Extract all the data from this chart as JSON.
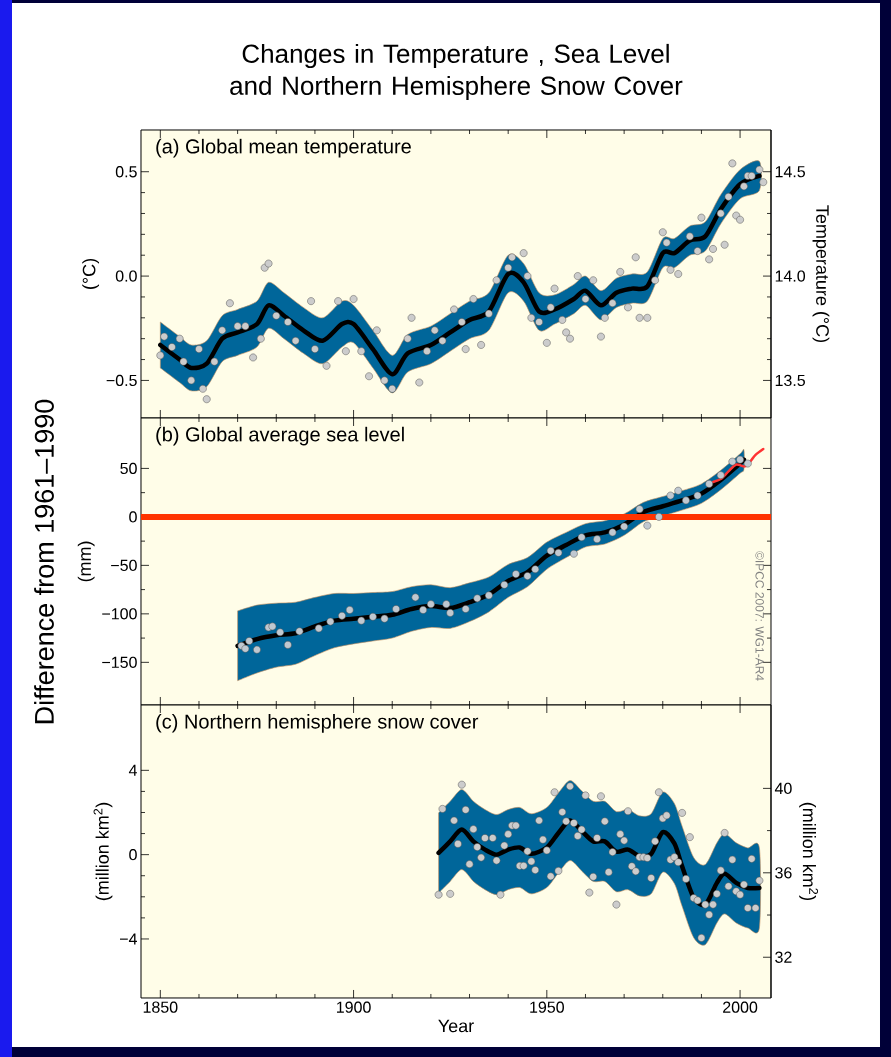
{
  "chart_data": [
    {
      "type": "line",
      "title": "Changes in Temperature , Sea Level and Northern Hemisphere Snow Cover",
      "subtitle": "(a) Global mean temperature",
      "ylabel": "(°C)",
      "y2label": "Temperature (°C)",
      "xlim": [
        1845,
        2008
      ],
      "xticks": [
        1850,
        1900,
        1950,
        2000
      ],
      "ylim": [
        -0.68,
        0.7
      ],
      "yticks": [
        {
          "value": -0.5,
          "label": "−0.5"
        },
        {
          "value": 0,
          "label": "0.0"
        },
        {
          "value": 0.5,
          "label": "0.5"
        }
      ],
      "y2lim": [
        13.32,
        14.7
      ],
      "y2ticks": [
        {
          "value": 13.5,
          "label": "13.5"
        },
        {
          "value": 14,
          "label": "14.0"
        },
        {
          "value": 14.5,
          "label": "14.5"
        }
      ],
      "tick_labels": "y",
      "series": [
        {
          "color": "#000000",
          "x": [
            1850,
            1855,
            1858,
            1862,
            1866,
            1870,
            1875,
            1878,
            1882,
            1887,
            1892,
            1897,
            1900,
            1905,
            1910,
            1914,
            1920,
            1925,
            1930,
            1935,
            1940,
            1944,
            1948,
            1952,
            1957,
            1960,
            1964,
            1968,
            1972,
            1976,
            1980,
            1983,
            1987,
            1991,
            1995,
            2000,
            2005
          ],
          "upper": [
            -0.22,
            -0.29,
            -0.33,
            -0.31,
            -0.19,
            -0.16,
            -0.12,
            -0.03,
            -0.08,
            -0.15,
            -0.2,
            -0.12,
            -0.14,
            -0.26,
            -0.38,
            -0.28,
            -0.24,
            -0.18,
            -0.12,
            -0.08,
            0.1,
            0.06,
            -0.08,
            -0.09,
            -0.04,
            0.0,
            -0.07,
            -0.01,
            0.01,
            0.02,
            0.18,
            0.18,
            0.24,
            0.26,
            0.39,
            0.51,
            0.55
          ],
          "lower": [
            -0.44,
            -0.51,
            -0.55,
            -0.53,
            -0.41,
            -0.38,
            -0.34,
            -0.25,
            -0.3,
            -0.37,
            -0.42,
            -0.34,
            -0.32,
            -0.44,
            -0.56,
            -0.46,
            -0.42,
            -0.36,
            -0.3,
            -0.26,
            -0.08,
            -0.12,
            -0.26,
            -0.23,
            -0.18,
            -0.14,
            -0.21,
            -0.15,
            -0.13,
            -0.12,
            0.04,
            0.04,
            0.1,
            0.12,
            0.25,
            0.37,
            0.41
          ],
          "values": [
            -0.33,
            -0.4,
            -0.44,
            -0.42,
            -0.3,
            -0.27,
            -0.23,
            -0.14,
            -0.19,
            -0.26,
            -0.31,
            -0.23,
            -0.23,
            -0.35,
            -0.47,
            -0.37,
            -0.33,
            -0.27,
            -0.21,
            -0.17,
            0.01,
            -0.03,
            -0.17,
            -0.16,
            -0.11,
            -0.07,
            -0.14,
            -0.08,
            -0.06,
            -0.05,
            0.11,
            0.11,
            0.17,
            0.19,
            0.32,
            0.44,
            0.48
          ]
        },
        {
          "type": "scatter",
          "color": "#cccccc",
          "marker": "circle",
          "x": [
            1850,
            1851,
            1853,
            1855,
            1856,
            1858,
            1860,
            1861,
            1862,
            1864,
            1866,
            1868,
            1870,
            1872,
            1874,
            1876,
            1877,
            1878,
            1880,
            1883,
            1885,
            1889,
            1890,
            1893,
            1896,
            1898,
            1900,
            1902,
            1904,
            1906,
            1908,
            1910,
            1914,
            1915,
            1917,
            1919,
            1921,
            1923,
            1926,
            1928,
            1929,
            1931,
            1933,
            1935,
            1937,
            1940,
            1941,
            1944,
            1945,
            1946,
            1948,
            1950,
            1951,
            1952,
            1954,
            1955,
            1956,
            1958,
            1960,
            1962,
            1964,
            1965,
            1967,
            1969,
            1971,
            1973,
            1974,
            1976,
            1978,
            1980,
            1981,
            1982,
            1984,
            1987,
            1989,
            1990,
            1992,
            1993,
            1995,
            1996,
            1997,
            1998,
            1999,
            2000,
            2001,
            2002,
            2003,
            2005,
            2006
          ],
          "values": [
            -0.38,
            -0.29,
            -0.34,
            -0.3,
            -0.41,
            -0.5,
            -0.35,
            -0.54,
            -0.59,
            -0.41,
            -0.26,
            -0.13,
            -0.24,
            -0.24,
            -0.39,
            -0.3,
            0.04,
            0.06,
            -0.19,
            -0.22,
            -0.31,
            -0.12,
            -0.35,
            -0.43,
            -0.12,
            -0.36,
            -0.11,
            -0.36,
            -0.48,
            -0.26,
            -0.5,
            -0.54,
            -0.3,
            -0.2,
            -0.51,
            -0.36,
            -0.26,
            -0.31,
            -0.16,
            -0.22,
            -0.35,
            -0.11,
            -0.33,
            -0.18,
            -0.02,
            0.04,
            0.09,
            0.11,
            0.0,
            -0.2,
            -0.22,
            -0.32,
            -0.15,
            -0.06,
            -0.21,
            -0.27,
            -0.3,
            0.0,
            -0.11,
            -0.02,
            -0.29,
            -0.2,
            -0.13,
            0.02,
            -0.15,
            0.09,
            -0.2,
            -0.2,
            -0.02,
            0.21,
            0.16,
            0.03,
            0.01,
            0.19,
            0.12,
            0.28,
            0.08,
            0.13,
            0.3,
            0.15,
            0.38,
            0.54,
            0.29,
            0.27,
            0.43,
            0.48,
            0.48,
            0.51,
            0.45
          ]
        }
      ]
    },
    {
      "type": "line",
      "subtitle": "(b) Global average sea level",
      "ylabel": "(mm)",
      "annotations": [
        "Difference from 1961–1990",
        "©IPCC 2007: WG1-AR4"
      ],
      "xlim": [
        1845,
        2008
      ],
      "xticks": [
        1850,
        1900,
        1950,
        2000
      ],
      "ylim": [
        -194,
        102
      ],
      "yticks": [
        {
          "value": -150,
          "label": "−150"
        },
        {
          "value": -100,
          "label": "−100"
        },
        {
          "value": -50,
          "label": "−50"
        },
        0,
        50
      ],
      "tick_labels": "y",
      "ref_lines": [
        {
          "axis": "y",
          "value": 0,
          "color": "#ff3300"
        }
      ],
      "series": [
        {
          "color": "#000000",
          "x": [
            1870,
            1875,
            1880,
            1885,
            1890,
            1895,
            1900,
            1905,
            1910,
            1915,
            1920,
            1925,
            1930,
            1935,
            1940,
            1945,
            1950,
            1955,
            1960,
            1965,
            1970,
            1975,
            1980,
            1985,
            1990,
            1995,
            2000,
            2001
          ],
          "upper": [
            -97,
            -91,
            -89,
            -88,
            -83,
            -79,
            -79,
            -78,
            -77,
            -72,
            -70,
            -73,
            -68,
            -62,
            -49,
            -42,
            -26,
            -16,
            -7,
            -4,
            3,
            15,
            21,
            27,
            34,
            48,
            65,
            69
          ],
          "lower": [
            -169,
            -161,
            -155,
            -152,
            -143,
            -135,
            -131,
            -128,
            -125,
            -118,
            -114,
            -115,
            -108,
            -98,
            -83,
            -72,
            -54,
            -42,
            -31,
            -28,
            -19,
            -5,
            1,
            7,
            14,
            28,
            45,
            49
          ],
          "values": [
            -133,
            -126,
            -122,
            -120,
            -113,
            -107,
            -105,
            -103,
            -101,
            -95,
            -92,
            -94,
            -88,
            -80,
            -66,
            -57,
            -40,
            -29,
            -19,
            -16,
            -8,
            5,
            11,
            17,
            24,
            38,
            55,
            59
          ]
        },
        {
          "type": "scatter",
          "color": "#c0c8d0",
          "marker": "circle",
          "x": [
            1871,
            1872,
            1873,
            1875,
            1878,
            1879,
            1881,
            1883,
            1886,
            1891,
            1894,
            1897,
            1899,
            1902,
            1905,
            1908,
            1911,
            1916,
            1918,
            1920,
            1924,
            1925,
            1929,
            1932,
            1935,
            1939,
            1942,
            1945,
            1947,
            1951,
            1953,
            1957,
            1959,
            1963,
            1967,
            1970,
            1974,
            1976,
            1979,
            1982,
            1984,
            1986,
            1989,
            1992,
            1995,
            1998,
            2000,
            2002
          ],
          "values": [
            -133,
            -136,
            -128,
            -137,
            -114,
            -113,
            -119,
            -132,
            -118,
            -115,
            -108,
            -102,
            -96,
            -107,
            -103,
            -105,
            -95,
            -83,
            -96,
            -90,
            -90,
            -99,
            -95,
            -84,
            -81,
            -70,
            -59,
            -61,
            -54,
            -35,
            -37,
            -38,
            -21,
            -23,
            -16,
            -10,
            8,
            -9,
            0,
            22,
            27,
            17,
            22,
            34,
            43,
            57,
            59,
            55
          ]
        },
        {
          "color": "#ff3333",
          "x": [
            1993,
            1995,
            1997,
            1999,
            2001,
            2002,
            2003,
            2004,
            2006
          ],
          "values": [
            36,
            39,
            47,
            54,
            52,
            54,
            59,
            64,
            70
          ]
        }
      ]
    },
    {
      "type": "line",
      "subtitle": "(c) Northern hemisphere snow cover",
      "ylabel": "(million km$^{2}$)",
      "y2label": "(million km$^{2}$)",
      "xlabel": "Year",
      "xlim": [
        1845,
        2008
      ],
      "xticks": [
        1850,
        1900,
        1950,
        2000
      ],
      "ylim": [
        -6.8,
        7.1
      ],
      "yticks": [
        {
          "value": -4,
          "label": "−4"
        },
        0,
        4
      ],
      "y2lim": [
        30.07,
        43.95
      ],
      "y2ticks": [
        32,
        36,
        40
      ],
      "series": [
        {
          "color": "#000000",
          "x": [
            1922,
            1925,
            1928,
            1931,
            1934,
            1937,
            1940,
            1943,
            1946,
            1950,
            1953,
            1956,
            1959,
            1962,
            1965,
            1968,
            1971,
            1974,
            1977,
            1980,
            1983,
            1985,
            1988,
            1991,
            1994,
            1996,
            1999,
            2002,
            2005
          ],
          "upper": [
            1.98,
            2.53,
            3.09,
            2.53,
            2.14,
            1.9,
            2.14,
            2.24,
            1.94,
            2.24,
            2.93,
            3.52,
            3.03,
            2.53,
            2.53,
            2.04,
            2.14,
            1.84,
            1.94,
            2.97,
            2.43,
            1.35,
            -0.14,
            -0.47,
            0.56,
            0.99,
            0.56,
            0.32,
            0.32
          ],
          "lower": [
            -1.82,
            -1.27,
            -0.71,
            -1.27,
            -1.66,
            -1.9,
            -1.66,
            -1.56,
            -1.86,
            -1.56,
            -0.87,
            -0.28,
            -0.77,
            -1.27,
            -1.27,
            -1.76,
            -1.66,
            -1.96,
            -1.86,
            -0.83,
            -1.37,
            -2.45,
            -3.94,
            -4.27,
            -3.24,
            -2.81,
            -3.24,
            -3.48,
            -3.48
          ],
          "values": [
            0.08,
            0.63,
            1.19,
            0.63,
            0.24,
            0.0,
            0.24,
            0.34,
            0.04,
            0.34,
            1.03,
            1.62,
            1.13,
            0.63,
            0.63,
            0.14,
            0.24,
            -0.06,
            0.04,
            1.07,
            0.53,
            -0.55,
            -2.04,
            -2.37,
            -1.34,
            -0.91,
            -1.34,
            -1.58,
            -1.58
          ]
        },
        {
          "type": "scatter",
          "color": "#cccccc",
          "marker": "circle",
          "x": [
            1922,
            1923,
            1925,
            1926,
            1927,
            1928,
            1929,
            1930,
            1931,
            1932,
            1933,
            1934,
            1936,
            1937,
            1938,
            1939,
            1940,
            1941,
            1942,
            1943,
            1944,
            1945,
            1946,
            1947,
            1948,
            1949,
            1950,
            1951,
            1952,
            1953,
            1954,
            1955,
            1956,
            1957,
            1958,
            1959,
            1960,
            1961,
            1962,
            1963,
            1964,
            1965,
            1966,
            1967,
            1968,
            1969,
            1970,
            1971,
            1972,
            1973,
            1974,
            1975,
            1976,
            1977,
            1978,
            1979,
            1980,
            1981,
            1982,
            1983,
            1984,
            1985,
            1986,
            1987,
            1988,
            1989,
            1990,
            1991,
            1992,
            1993,
            1994,
            1995,
            1996,
            1997,
            1998,
            1999,
            2000,
            2001,
            2002,
            2003,
            2004,
            2005
          ],
          "values": [
            -1.9,
            2.17,
            -1.86,
            1.62,
            0.51,
            3.32,
            2.13,
            -0.45,
            1.21,
            0.36,
            -0.14,
            0.79,
            0.79,
            -0.28,
            -1.9,
            0.43,
            0.97,
            1.38,
            1.38,
            -0.53,
            -0.53,
            0.16,
            -0.32,
            -0.73,
            1.62,
            0.71,
            0.2,
            -1.03,
            2.96,
            -0.77,
            2.02,
            1.58,
            3.24,
            1.5,
            0.89,
            1.19,
            2.81,
            -1.8,
            -1.05,
            0.79,
            2.77,
            1.58,
            -0.83,
            0.12,
            -2.37,
            0.97,
            0.67,
            2.06,
            -0.55,
            -0.79,
            -0.12,
            -0.12,
            -0.16,
            -1.11,
            0.63,
            2.96,
            1.72,
            1.86,
            -0.24,
            -0.12,
            -0.36,
            1.98,
            -1.15,
            0.83,
            -2.06,
            -2.17,
            -3.95,
            -2.37,
            -2.85,
            -2.37,
            -1.86,
            -0.75,
            1.03,
            -1.5,
            -0.24,
            -1.74,
            -1.9,
            -1.42,
            -2.53,
            -0.2,
            -2.53,
            -1.23
          ]
        }
      ]
    }
  ]
}
